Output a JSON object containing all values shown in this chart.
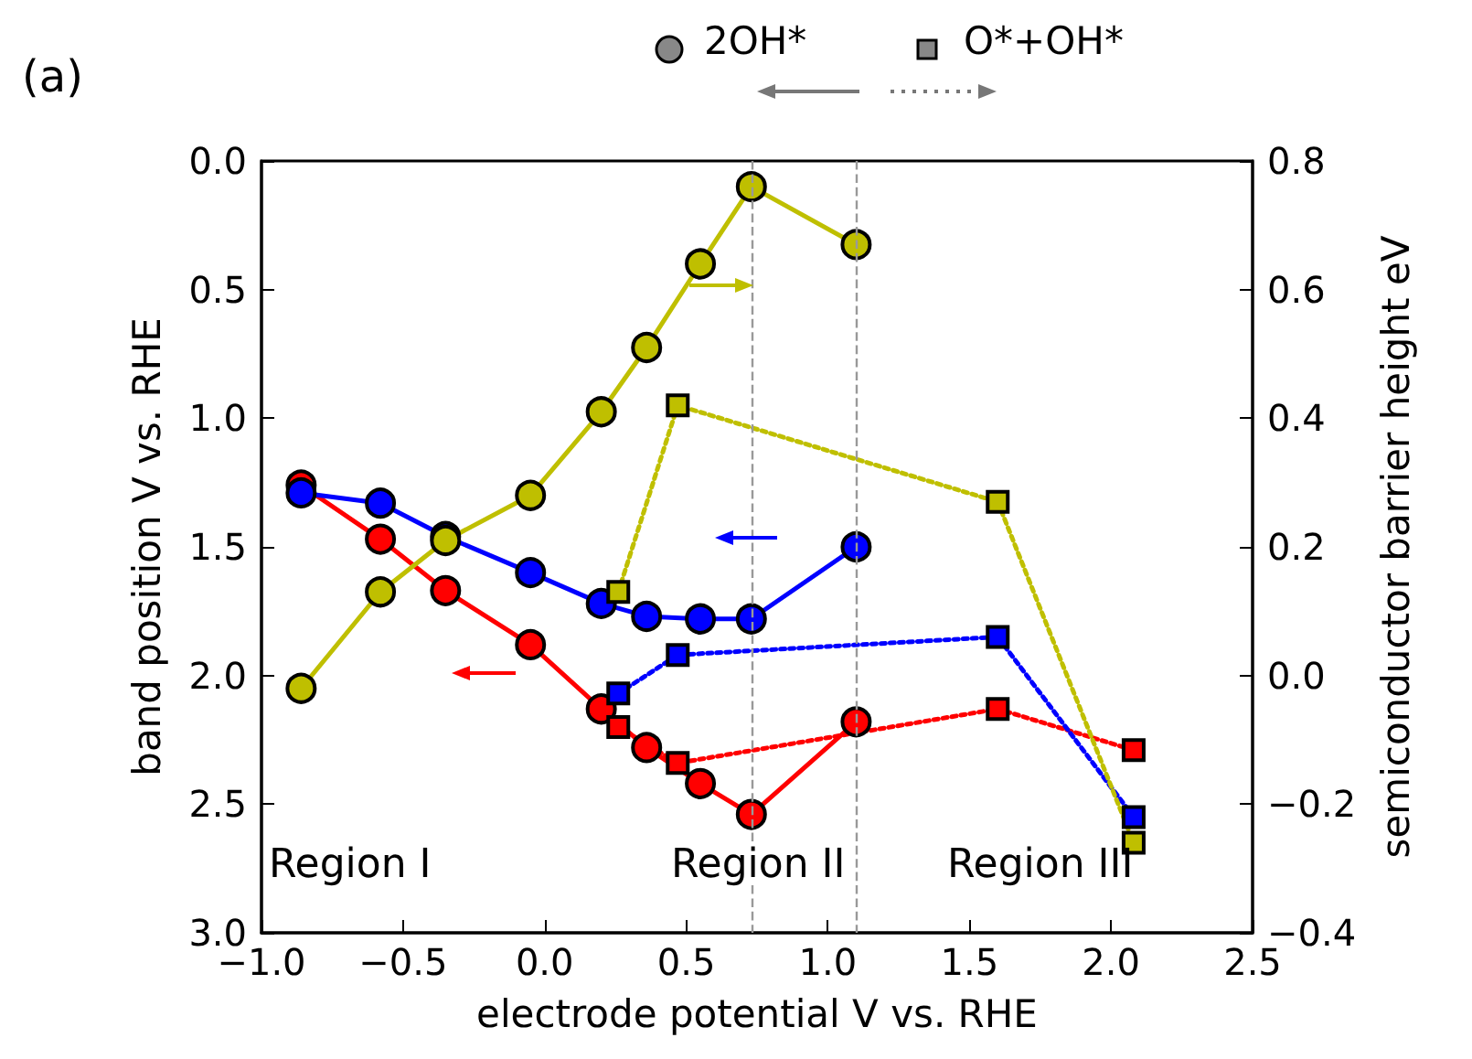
{
  "chart_data": {
    "type": "line",
    "xlabel": "electrode potential V vs. RHE",
    "ylabel": "band position V vs. RHE",
    "y2label": "semiconductor barrier height eV",
    "annotations": [
      "(a)",
      "Region I",
      "Region II",
      "Region III",
      "2OH*",
      "O*+OH*"
    ],
    "xlim": [
      -1.0,
      2.5
    ],
    "xticks": [
      {
        "value": -1.0,
        "label": "−1.0"
      },
      {
        "value": -0.5,
        "label": "−0.5"
      },
      {
        "value": 0,
        "label": "0.0"
      },
      {
        "value": 0.5,
        "label": "0.5"
      },
      {
        "value": 1.0,
        "label": "1.0"
      },
      {
        "value": 1.5,
        "label": "1.5"
      },
      {
        "value": 2.0,
        "label": "2.0"
      },
      {
        "value": 2.5,
        "label": "2.5"
      }
    ],
    "ylim": [
      3.0,
      0.0
    ],
    "yticks": [
      {
        "value": 0,
        "label": "0.0"
      },
      {
        "value": 0.5,
        "label": "0.5"
      },
      {
        "value": 1.0,
        "label": "1.0"
      },
      {
        "value": 1.5,
        "label": "1.5"
      },
      {
        "value": 2.0,
        "label": "2.0"
      },
      {
        "value": 2.5,
        "label": "2.5"
      },
      {
        "value": 3.0,
        "label": "3.0"
      }
    ],
    "y2lim": [
      -0.4,
      0.8
    ],
    "y2ticks": [
      {
        "value": -0.4,
        "label": "−0.4"
      },
      {
        "value": -0.2,
        "label": "−0.2"
      },
      {
        "value": 0,
        "label": "0.0"
      },
      0.2,
      0.4,
      0.6,
      0.8
    ],
    "ref_lines": [
      {
        "axis": "x",
        "value": 0.73,
        "color": "#999999",
        "line_style": "dashed"
      },
      {
        "axis": "x",
        "value": 1.1,
        "color": "#999999",
        "line_style": "dashed"
      }
    ],
    "series": [
      {
        "color": "#ff0000",
        "marker": "circle",
        "line_style": "solid",
        "x": [
          -0.86,
          -0.58,
          -0.35,
          -0.05,
          0.2,
          0.36,
          0.55,
          0.73,
          1.1
        ],
        "values": [
          1.26,
          1.47,
          1.67,
          1.88,
          2.13,
          2.28,
          2.42,
          2.54,
          2.18
        ]
      },
      {
        "color": "#0000ff",
        "marker": "circle",
        "line_style": "solid",
        "x": [
          -0.86,
          -0.58,
          -0.35,
          -0.05,
          0.2,
          0.36,
          0.55,
          0.73,
          1.1
        ],
        "values": [
          1.29,
          1.33,
          1.46,
          1.6,
          1.72,
          1.77,
          1.78,
          1.78,
          1.5
        ]
      },
      {
        "color": "#bfbf00",
        "marker": "circle",
        "line_style": "solid",
        "axis": "y2",
        "x": [
          -0.86,
          -0.58,
          -0.35,
          -0.05,
          0.2,
          0.36,
          0.55,
          0.73,
          1.1
        ],
        "values": [
          -0.02,
          0.13,
          0.21,
          0.28,
          0.41,
          0.51,
          0.64,
          0.76,
          0.67
        ]
      },
      {
        "color": "#ff0000",
        "marker": "square",
        "line_style": "dotted",
        "x": [
          0.26,
          0.47,
          1.6,
          2.08
        ],
        "values": [
          2.2,
          2.34,
          2.13,
          2.29
        ]
      },
      {
        "color": "#0000ff",
        "marker": "square",
        "line_style": "dotted",
        "x": [
          0.26,
          0.47,
          1.6,
          2.08
        ],
        "values": [
          2.07,
          1.92,
          1.85,
          2.55
        ]
      },
      {
        "color": "#bfbf00",
        "marker": "square",
        "line_style": "dotted",
        "axis": "y2",
        "x": [
          0.26,
          0.47,
          1.6,
          2.08
        ],
        "values": [
          0.13,
          0.42,
          0.27,
          -0.26
        ]
      }
    ]
  }
}
